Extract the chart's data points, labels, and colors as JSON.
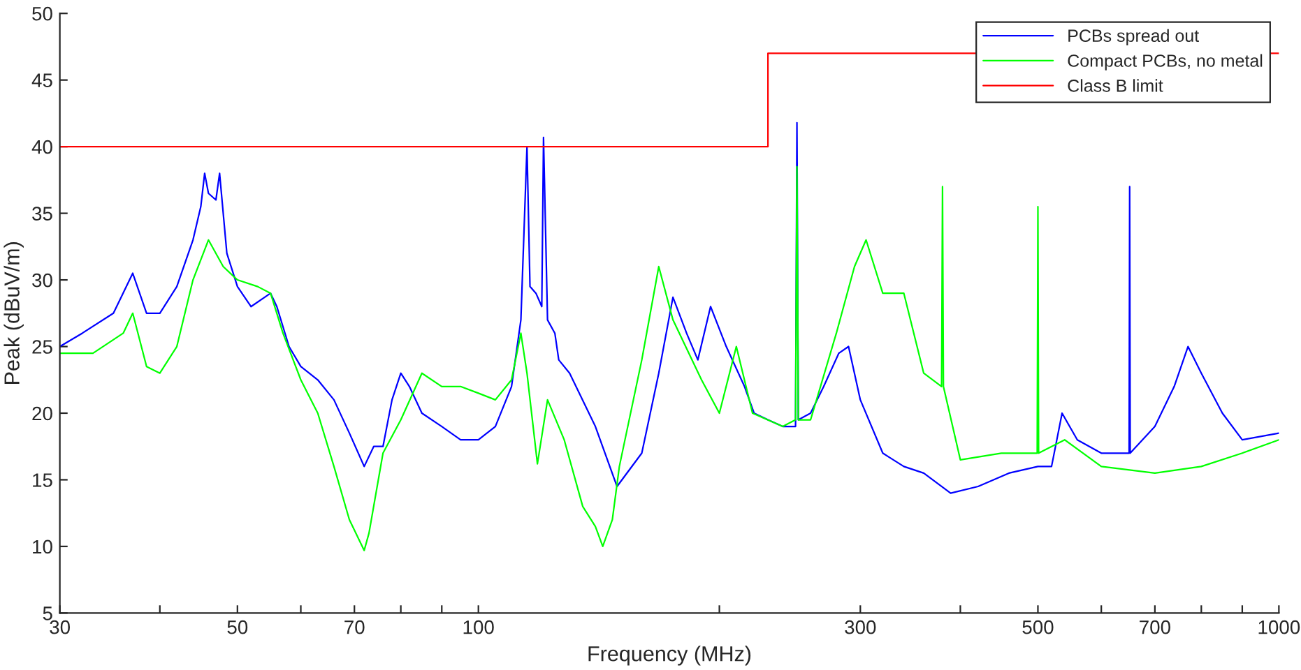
{
  "chart_data": {
    "type": "line",
    "xlabel": "Frequency (MHz)",
    "ylabel": "Peak (dBuV/m)",
    "log": "x",
    "xlim": [
      30,
      1000
    ],
    "ylim": [
      5,
      50
    ],
    "xticks": [
      30,
      {
        "value": 40,
        "label": null
      },
      50,
      {
        "value": 60,
        "label": null
      },
      70,
      {
        "value": 80,
        "label": null
      },
      {
        "value": 90,
        "label": null
      },
      100,
      {
        "value": 200,
        "label": null
      },
      300,
      {
        "value": 400,
        "label": null
      },
      500,
      {
        "value": 600,
        "label": null
      },
      700,
      {
        "value": 800,
        "label": null
      },
      {
        "value": 900,
        "label": null
      },
      1000
    ],
    "yticks": [
      5,
      10,
      15,
      20,
      25,
      30,
      35,
      40,
      45,
      50
    ],
    "grid": false,
    "legend": "top right",
    "line_style": "solid",
    "marker": "none",
    "series": [
      {
        "name": "PCBs spread out",
        "color": "#0000ff",
        "x": [
          30,
          32,
          35,
          37,
          38.5,
          40,
          42,
          44,
          45,
          45.5,
          46,
          47,
          47.5,
          48.5,
          50,
          52,
          55,
          56,
          58,
          60,
          63,
          66,
          69,
          72,
          74,
          76,
          78,
          80,
          82,
          85,
          90,
          95,
          100,
          105,
          110,
          113,
          115,
          116,
          118,
          120,
          120.6,
          122,
          124.6,
          126,
          130,
          140,
          149,
          160,
          168,
          175,
          182,
          188,
          195,
          204,
          215,
          221,
          230,
          240,
          249,
          250,
          251,
          260,
          270,
          282,
          290,
          300,
          320,
          340,
          360,
          389,
          421,
          460,
          500,
          520,
          536,
          560,
          600,
          650,
          651,
          652,
          700,
          740,
          770,
          800,
          850,
          900,
          1000
        ],
        "values": [
          25,
          26,
          27.5,
          30.5,
          27.5,
          27.5,
          29.5,
          33,
          35.5,
          38,
          36.5,
          36,
          38,
          32,
          29.5,
          28,
          29,
          28,
          25,
          23.5,
          22.5,
          21,
          18.5,
          16,
          17.5,
          17.5,
          21,
          23,
          22,
          20,
          19,
          18,
          18,
          19,
          22,
          27,
          40,
          29.5,
          29,
          28,
          40.7,
          27,
          26,
          24,
          23,
          19,
          14.5,
          17,
          23,
          28.7,
          26,
          24,
          28,
          25,
          22,
          20,
          19.5,
          19,
          19,
          41.8,
          19.5,
          20,
          22,
          24.5,
          25,
          21,
          17,
          16,
          15.5,
          14,
          14.5,
          15.5,
          16,
          16,
          20,
          18,
          17,
          17,
          37,
          17,
          19,
          22,
          25,
          23,
          20,
          18,
          18.5
        ]
      },
      {
        "name": "Compact PCBs, no metal",
        "color": "#00ff00",
        "x": [
          30,
          33,
          36,
          37,
          38.5,
          40,
          42,
          44,
          46,
          48,
          50,
          53,
          55,
          57,
          60,
          63,
          66,
          69,
          72,
          73,
          76,
          80,
          85,
          90,
          95,
          100,
          105,
          110,
          113,
          115,
          118.5,
          122,
          128,
          135,
          140,
          143,
          147,
          150,
          160,
          168,
          175,
          190,
          200,
          210,
          220,
          240,
          249,
          250,
          251,
          260,
          280,
          295,
          305,
          320,
          340,
          360,
          379,
          380,
          381,
          400,
          450,
          499,
          500,
          501,
          540,
          600,
          700,
          800,
          900,
          1000
        ],
        "values": [
          24.5,
          24.5,
          26,
          27.5,
          23.5,
          23,
          25,
          30,
          33,
          31,
          30,
          29.5,
          29,
          26,
          22.5,
          20,
          16,
          12,
          9.7,
          11,
          17,
          19.5,
          23,
          22,
          22,
          21.5,
          21,
          22.5,
          26,
          23,
          16.2,
          21,
          18,
          13,
          11.5,
          10,
          12,
          16,
          24,
          31,
          27,
          22.5,
          20,
          25,
          20,
          19,
          19.5,
          38.5,
          19.5,
          19.5,
          26,
          31,
          33,
          29,
          29,
          23,
          22,
          37,
          22,
          16.5,
          17,
          17,
          35.5,
          17,
          18,
          16,
          15.5,
          16,
          17,
          18
        ]
      },
      {
        "name": "Class B limit",
        "color": "#ff0000",
        "x": [
          30,
          230,
          230,
          1000
        ],
        "values": [
          40,
          40,
          47,
          47
        ]
      }
    ]
  }
}
